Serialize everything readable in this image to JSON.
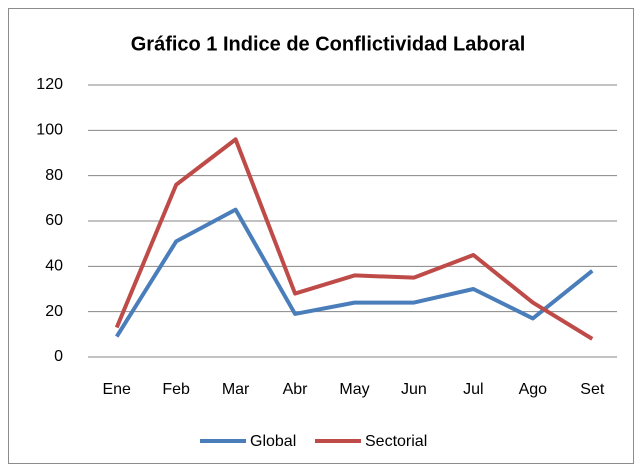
{
  "chart_data": {
    "type": "line",
    "title": "Gráfico 1 Indice de Conflictividad Laboral",
    "categories": [
      "Ene",
      "Feb",
      "Mar",
      "Abr",
      "May",
      "Jun",
      "Jul",
      "Ago",
      "Set"
    ],
    "series": [
      {
        "name": "Global",
        "color": "#4a7ebb",
        "values": [
          9,
          51,
          65,
          19,
          24,
          24,
          30,
          17,
          38
        ]
      },
      {
        "name": "Sectorial",
        "color": "#be4b48",
        "values": [
          13,
          76,
          96,
          28,
          36,
          35,
          45,
          24,
          8
        ]
      }
    ],
    "ylim": [
      0,
      120
    ],
    "yticks": [
      0,
      20,
      40,
      60,
      80,
      100,
      120
    ],
    "grid": true,
    "legend": "bottom"
  }
}
